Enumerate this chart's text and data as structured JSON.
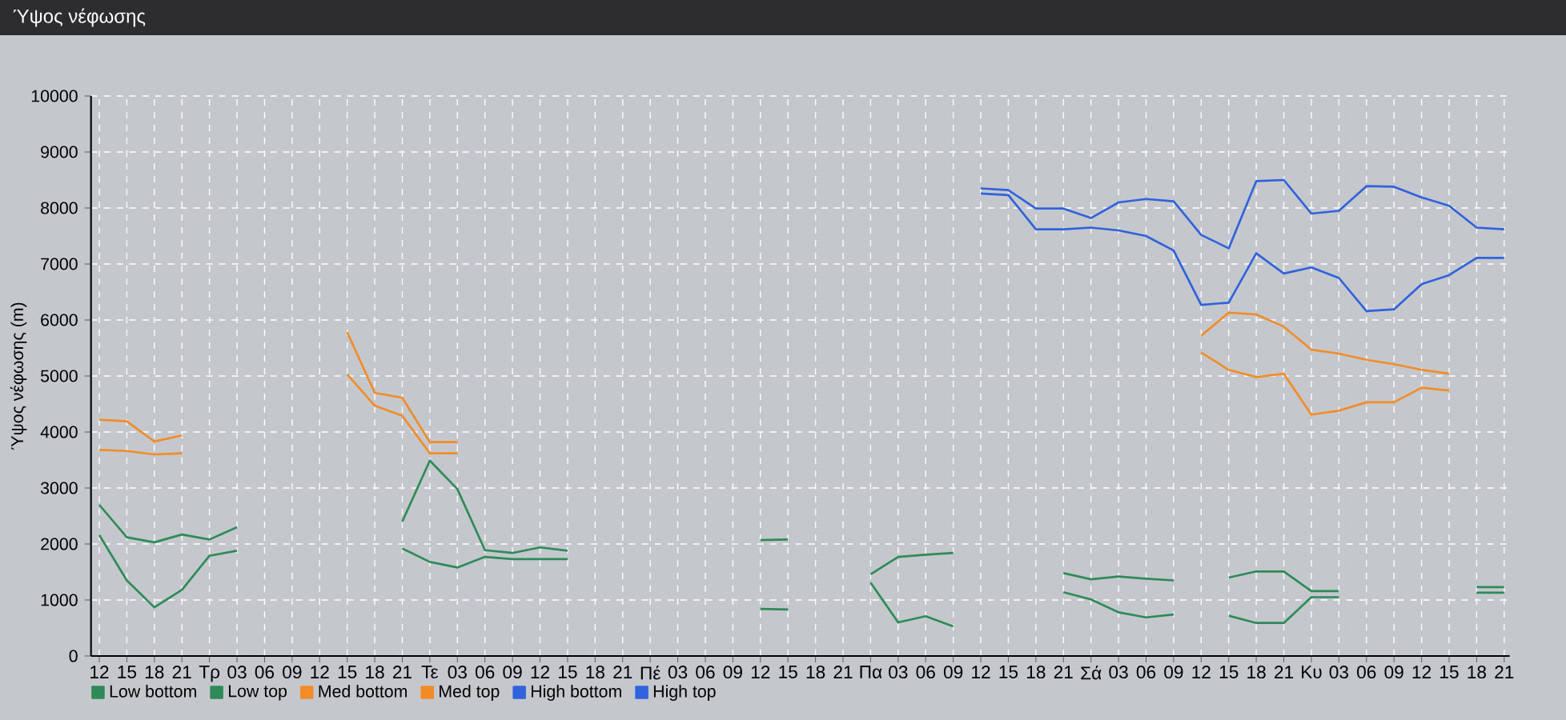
{
  "chart_data": {
    "type": "line",
    "title": "Ύψος νέφωσης",
    "ylabel": "Ύψος νέφωσης (m)",
    "categories": [
      "12",
      "15",
      "18",
      "21",
      "Τρ",
      "03",
      "06",
      "09",
      "12",
      "15",
      "18",
      "21",
      "Τε",
      "03",
      "06",
      "09",
      "12",
      "15",
      "18",
      "21",
      "Πέ",
      "03",
      "06",
      "09",
      "12",
      "15",
      "18",
      "21",
      "Πα",
      "03",
      "06",
      "09",
      "12",
      "15",
      "18",
      "21",
      "Σά",
      "03",
      "06",
      "09",
      "12",
      "15",
      "18",
      "21",
      "Κυ",
      "03",
      "06",
      "09",
      "12",
      "15",
      "18",
      "21"
    ],
    "ylim": [
      0,
      10000
    ],
    "yticks": [
      0,
      1000,
      2000,
      3000,
      4000,
      5000,
      6000,
      7000,
      8000,
      9000,
      10000
    ],
    "grid": true,
    "legend": "bottom",
    "marker": "none",
    "line_style": "solid",
    "series": [
      {
        "name": "Low bottom",
        "color": "#2e8b57",
        "values": [
          2160,
          1350,
          870,
          1180,
          1790,
          1880,
          null,
          null,
          null,
          null,
          null,
          1920,
          1680,
          1580,
          1770,
          1730,
          1730,
          1730,
          null,
          null,
          null,
          null,
          null,
          null,
          840,
          830,
          null,
          null,
          1310,
          600,
          710,
          530,
          null,
          null,
          null,
          1140,
          1010,
          780,
          690,
          740,
          null,
          720,
          590,
          590,
          1050,
          1050,
          null,
          null,
          null,
          null,
          1130,
          1130
        ]
      },
      {
        "name": "Low top",
        "color": "#2e8b57",
        "values": [
          2700,
          2120,
          2030,
          2170,
          2080,
          2300,
          null,
          null,
          null,
          null,
          null,
          2400,
          3490,
          2980,
          1890,
          1840,
          1940,
          1880,
          null,
          null,
          null,
          null,
          null,
          null,
          2070,
          2080,
          null,
          null,
          1460,
          1770,
          1810,
          1840,
          null,
          null,
          null,
          1480,
          1370,
          1420,
          1380,
          1350,
          null,
          1400,
          1510,
          1510,
          1160,
          1160,
          null,
          null,
          null,
          null,
          1230,
          1230
        ]
      },
      {
        "name": "Med bottom",
        "color": "#f28c28",
        "values": [
          3680,
          3660,
          3600,
          3620,
          null,
          null,
          null,
          null,
          null,
          5030,
          4470,
          4290,
          3620,
          3620,
          null,
          null,
          null,
          null,
          null,
          null,
          null,
          null,
          null,
          null,
          null,
          null,
          null,
          null,
          null,
          null,
          null,
          null,
          null,
          null,
          null,
          null,
          null,
          null,
          null,
          null,
          5420,
          5110,
          4980,
          5040,
          4310,
          4380,
          4530,
          4530,
          4790,
          4740,
          null,
          null
        ]
      },
      {
        "name": "Med top",
        "color": "#f28c28",
        "values": [
          4220,
          4190,
          3830,
          3940,
          null,
          null,
          null,
          null,
          null,
          5780,
          4700,
          4610,
          3820,
          3820,
          null,
          null,
          null,
          null,
          null,
          null,
          null,
          null,
          null,
          null,
          null,
          null,
          null,
          null,
          null,
          null,
          null,
          null,
          null,
          null,
          null,
          null,
          null,
          null,
          null,
          null,
          5720,
          6130,
          6100,
          5880,
          5470,
          5400,
          5290,
          5210,
          5110,
          5040,
          null,
          null
        ]
      },
      {
        "name": "High bottom",
        "color": "#2f62dc",
        "values": [
          null,
          null,
          null,
          null,
          null,
          null,
          null,
          null,
          null,
          null,
          null,
          null,
          null,
          null,
          null,
          null,
          null,
          null,
          null,
          null,
          null,
          null,
          null,
          null,
          null,
          null,
          null,
          null,
          null,
          null,
          null,
          null,
          8260,
          8230,
          7620,
          7620,
          7650,
          7600,
          7500,
          7240,
          6270,
          6310,
          7190,
          6830,
          6940,
          6750,
          6160,
          6190,
          6640,
          6800,
          7110,
          7110
        ]
      },
      {
        "name": "High top",
        "color": "#2f62dc",
        "values": [
          null,
          null,
          null,
          null,
          null,
          null,
          null,
          null,
          null,
          null,
          null,
          null,
          null,
          null,
          null,
          null,
          null,
          null,
          null,
          null,
          null,
          null,
          null,
          null,
          null,
          null,
          null,
          null,
          null,
          null,
          null,
          null,
          8350,
          8320,
          7990,
          7990,
          7820,
          8100,
          8160,
          8120,
          7520,
          7280,
          8480,
          8500,
          7900,
          7950,
          8390,
          8380,
          8190,
          8040,
          7650,
          7620
        ]
      }
    ]
  }
}
